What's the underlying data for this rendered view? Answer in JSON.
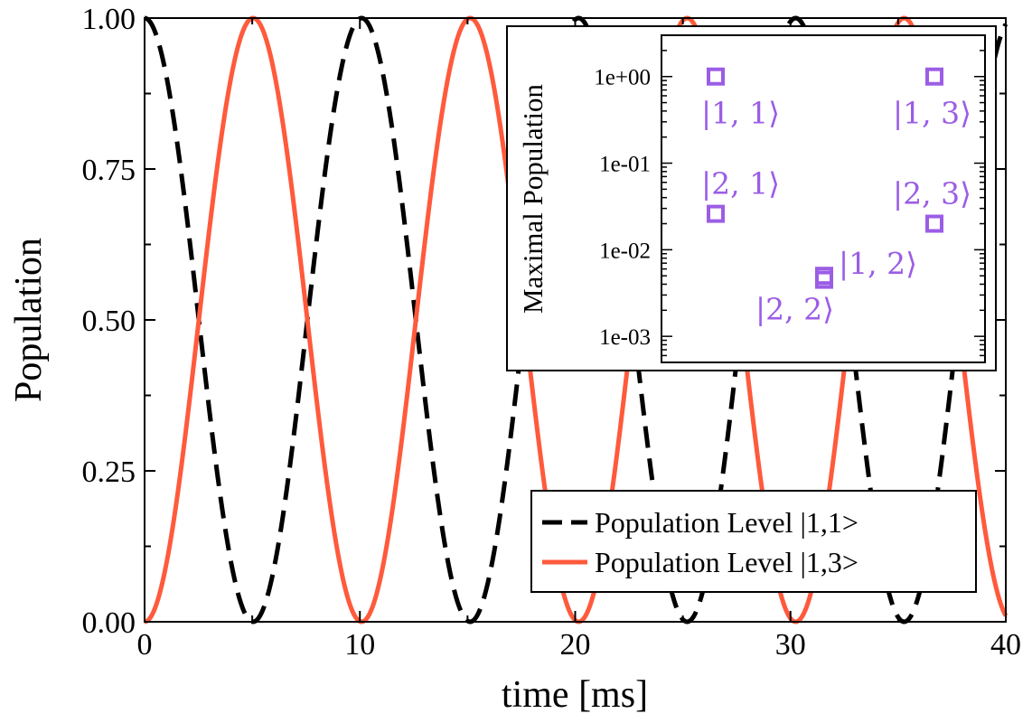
{
  "chart_data": [
    {
      "type": "line",
      "title": "",
      "xlabel": "time [ms]",
      "ylabel": "Population",
      "xlim": [
        0,
        40
      ],
      "ylim": [
        0,
        1
      ],
      "xticks": [
        "0",
        "10",
        "20",
        "30",
        "40"
      ],
      "yticks": [
        "0.00",
        "0.25",
        "0.50",
        "0.75",
        "1.00"
      ],
      "period_ms": 10.08,
      "series": [
        {
          "name": "Population Level |1,1>",
          "style": "dashed",
          "color": "#000000",
          "x": [
            0,
            5.04,
            10.08,
            15.12,
            20.16,
            25.2,
            30.24,
            35.28,
            40
          ],
          "values": [
            1.0,
            0.0,
            1.0,
            0.0,
            1.0,
            0.0,
            1.0,
            0.0,
            0.94
          ]
        },
        {
          "name": "Population Level |1,3>",
          "style": "solid",
          "color": "#ff5a3c",
          "x": [
            0,
            5.04,
            10.08,
            15.12,
            20.16,
            25.2,
            30.24,
            35.28,
            40
          ],
          "values": [
            0.0,
            1.0,
            0.0,
            1.0,
            0.0,
            1.0,
            0.0,
            1.0,
            0.06
          ]
        }
      ],
      "legend": {
        "position": "bottom-right",
        "entries": [
          "Population Level |1,1>",
          "Population Level |1,3>"
        ]
      }
    },
    {
      "type": "scatter",
      "title": "",
      "ylabel": "Maximal Population",
      "yscale": "log",
      "ylim": [
        0.0005,
        3
      ],
      "yticks": [
        "1e+00",
        "1e-01",
        "1e-02",
        "1e-03"
      ],
      "marker": "open-square",
      "color": "#9b5de5",
      "points": [
        {
          "label": "|1, 1⟩",
          "x": 1,
          "value": 1.0
        },
        {
          "label": "|1, 3⟩",
          "x": 3,
          "value": 1.0
        },
        {
          "label": "|2, 1⟩",
          "x": 1,
          "value": 0.026
        },
        {
          "label": "|2, 3⟩",
          "x": 3,
          "value": 0.02
        },
        {
          "label": "|1, 2⟩",
          "x": 2,
          "value": 0.005
        },
        {
          "label": "|2, 2⟩",
          "x": 2,
          "value": 0.0045
        }
      ]
    }
  ]
}
